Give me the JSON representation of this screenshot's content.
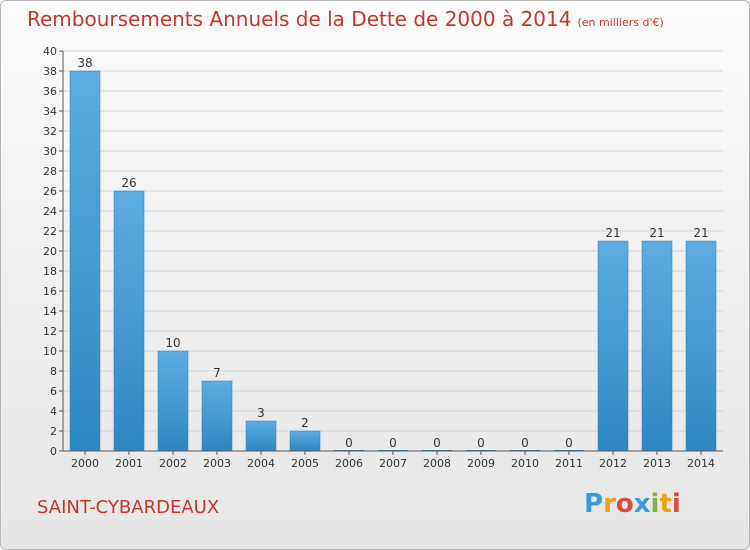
{
  "title": "Remboursements Annuels de la Dette de 2000 à 2014",
  "subtitle": "(en milliers d'€)",
  "town": "SAINT-CYBARDEAUX",
  "logo": {
    "letters": [
      "P",
      "r",
      "o",
      "x",
      "i",
      "t",
      "i"
    ],
    "colors": [
      "#3b9ad9",
      "#e8a21c",
      "#d94b3a",
      "#3b9ad9",
      "#7cb342",
      "#e8a21c",
      "#d94b3a"
    ]
  },
  "colors": {
    "bar_top": "#5dade2",
    "bar_bottom": "#2e86c1",
    "title": "#c0392b"
  },
  "chart_data": {
    "type": "bar",
    "categories": [
      "2000",
      "2001",
      "2002",
      "2003",
      "2004",
      "2005",
      "2006",
      "2007",
      "2008",
      "2009",
      "2010",
      "2011",
      "2012",
      "2013",
      "2014"
    ],
    "values": [
      38,
      26,
      10,
      7,
      3,
      2,
      0,
      0,
      0,
      0,
      0,
      0,
      21,
      21,
      21
    ],
    "ylim": [
      0,
      40
    ],
    "yticks": [
      0,
      2,
      4,
      6,
      8,
      10,
      12,
      14,
      16,
      18,
      20,
      22,
      24,
      26,
      28,
      30,
      32,
      34,
      36,
      38,
      40
    ],
    "grid": true
  }
}
